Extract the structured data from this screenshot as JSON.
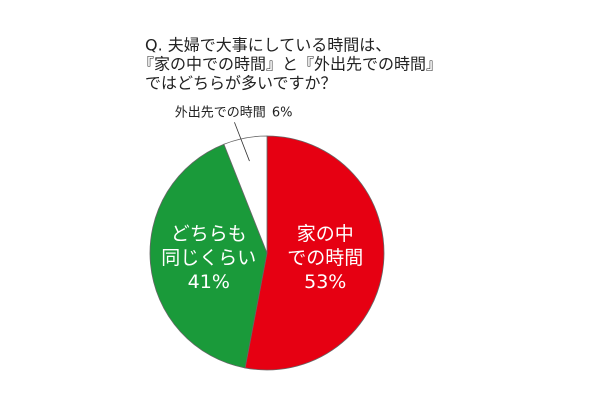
{
  "chart_data": {
    "type": "pie",
    "title_lines": [
      "Q. 夫婦で大事にしている時間は、",
      "『家の中での時間』と『外出先での時間』",
      "ではどちらが多いですか？"
    ],
    "categories": [
      [
        "家の中",
        "での時間"
      ],
      [
        "どちらも",
        "同じくらい"
      ],
      [
        "外出先での時間"
      ]
    ],
    "values": [
      53,
      41,
      6
    ],
    "value_labels": [
      "53%",
      "41%",
      "6%"
    ],
    "colors": [
      "#e60012",
      "#1a9a3a",
      "#ffffff"
    ]
  }
}
